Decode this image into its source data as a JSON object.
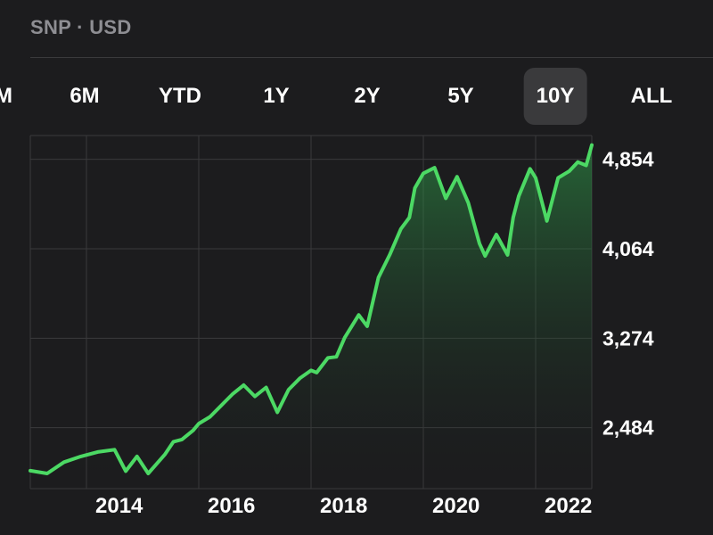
{
  "header": {
    "title": "SNP · USD"
  },
  "tabs": [
    {
      "label": "M",
      "active": false
    },
    {
      "label": "6M",
      "active": false
    },
    {
      "label": "YTD",
      "active": false
    },
    {
      "label": "1Y",
      "active": false
    },
    {
      "label": "2Y",
      "active": false
    },
    {
      "label": "5Y",
      "active": false
    },
    {
      "label": "10Y",
      "active": true
    },
    {
      "label": "ALL",
      "active": false
    }
  ],
  "colors": {
    "background": "#1c1c1e",
    "line": "#4cd964",
    "grid": "#3a3a3c",
    "active_tab": "#3a3a3c"
  },
  "chart_data": {
    "type": "area",
    "title": "",
    "xlabel": "",
    "ylabel": "",
    "x_tick_labels": [
      "2014",
      "2016",
      "2018",
      "2020",
      "2022"
    ],
    "x_tick_values": [
      2014,
      2016,
      2018,
      2020,
      2022
    ],
    "y_tick_labels": [
      "2,484",
      "3,274",
      "4,064",
      "4,854"
    ],
    "y_tick_values": [
      2484,
      3274,
      4064,
      4854
    ],
    "xlim": [
      2013.0,
      2023.0
    ],
    "ylim": [
      1946,
      5064
    ],
    "grid": true,
    "series": [
      {
        "x": [
          2013.0,
          2013.3,
          2013.6,
          2013.9,
          2014.2,
          2014.5,
          2014.7,
          2014.9,
          2015.1,
          2015.4,
          2015.55,
          2015.7,
          2015.9,
          2016.0,
          2016.2,
          2016.4,
          2016.6,
          2016.8,
          2017.0,
          2017.2,
          2017.4,
          2017.6,
          2017.8,
          2018.0,
          2018.1,
          2018.3,
          2018.45,
          2018.6,
          2018.85,
          2019.0,
          2019.2,
          2019.4,
          2019.6,
          2019.75,
          2019.85,
          2020.0,
          2020.2,
          2020.4,
          2020.6,
          2020.8,
          2021.0,
          2021.1,
          2021.3,
          2021.5,
          2021.6,
          2021.7,
          2021.9,
          2022.0,
          2022.2,
          2022.4,
          2022.6,
          2022.75,
          2022.9,
          2023.0
        ],
        "values": [
          2104,
          2080,
          2180,
          2230,
          2270,
          2290,
          2100,
          2230,
          2080,
          2250,
          2360,
          2380,
          2460,
          2520,
          2580,
          2680,
          2780,
          2860,
          2760,
          2840,
          2620,
          2820,
          2920,
          2990,
          2970,
          3100,
          3110,
          3280,
          3480,
          3380,
          3810,
          4010,
          4240,
          4340,
          4600,
          4730,
          4780,
          4510,
          4700,
          4470,
          4110,
          4000,
          4190,
          4010,
          4340,
          4530,
          4770,
          4690,
          4310,
          4690,
          4750,
          4830,
          4800,
          4980
        ]
      }
    ]
  }
}
